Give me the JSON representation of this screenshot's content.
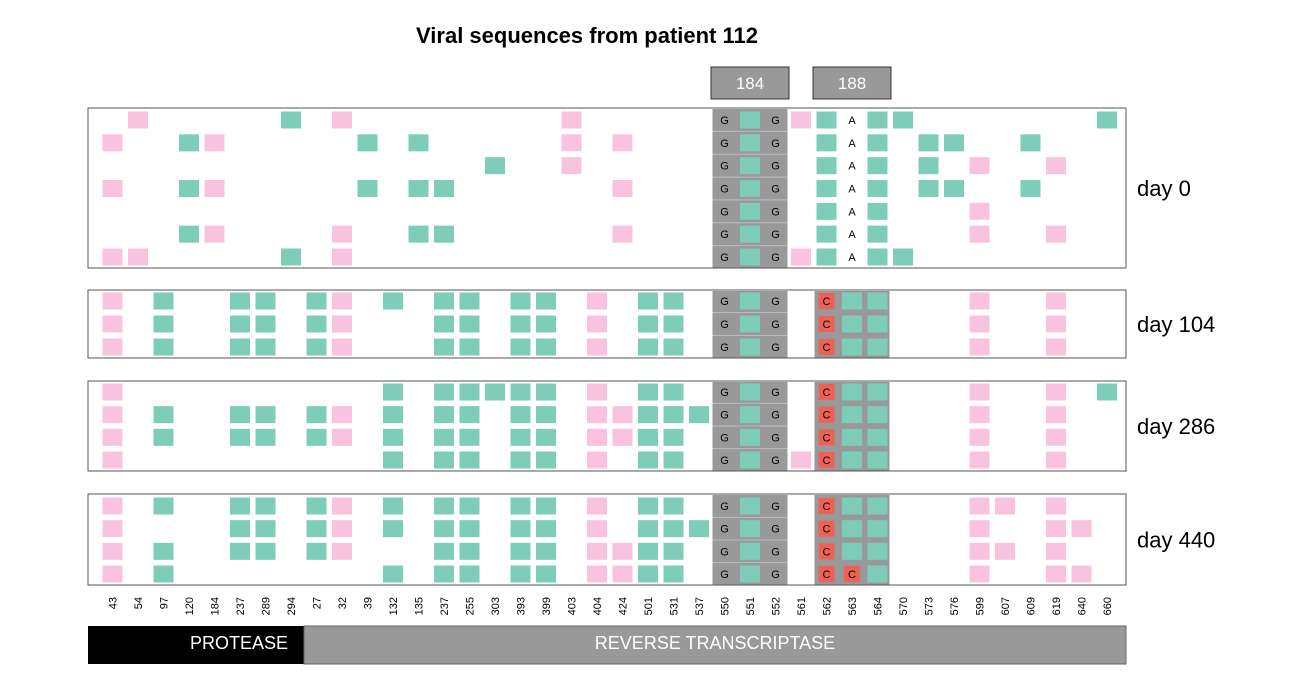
{
  "chart_data": {
    "type": "heatmap",
    "title": "Viral sequences from patient 112",
    "positions": [
      "43",
      "54",
      "97",
      "120",
      "184",
      "237",
      "289",
      "294",
      "27",
      "32",
      "39",
      "132",
      "135",
      "237",
      "255",
      "303",
      "393",
      "399",
      "403",
      "404",
      "424",
      "501",
      "531",
      "537",
      "550",
      "551",
      "552",
      "561",
      "562",
      "563",
      "564",
      "570",
      "573",
      "576",
      "599",
      "607",
      "609",
      "619",
      "640",
      "660"
    ],
    "highlights": [
      "184",
      "188"
    ],
    "regions": [
      {
        "label": "PROTEASE",
        "start": 0,
        "end": 7
      },
      {
        "label": "REVERSE TRANSCRIPTASE",
        "start": 8,
        "end": 39
      }
    ],
    "legend": {
      "P": "pink cell",
      "T": "teal cell"
    },
    "colors": {
      "pink": "#f9c3df",
      "teal": "#7dcdb9",
      "gray": "#999999",
      "red": "#ee6157",
      "orange": "#f89c51",
      "frame": "#555555"
    },
    "groups": [
      {
        "label": "day 0",
        "rows": [
          [
            ".",
            "P",
            ".",
            ".",
            ".",
            ".",
            ".",
            "T",
            ".",
            "P",
            ".",
            ".",
            ".",
            ".",
            ".",
            ".",
            ".",
            ".",
            "P",
            ".",
            ".",
            ".",
            ".",
            ".",
            "G",
            "T",
            "G",
            "P",
            "T",
            "A",
            "T",
            "T",
            ".",
            ".",
            ".",
            ".",
            ".",
            ".",
            ".",
            "T"
          ],
          [
            "P",
            ".",
            ".",
            "T",
            "P",
            ".",
            ".",
            ".",
            ".",
            ".",
            "T",
            ".",
            "T",
            ".",
            ".",
            ".",
            ".",
            ".",
            "P",
            ".",
            "P",
            ".",
            ".",
            ".",
            "G",
            "T",
            "G",
            ".",
            "T",
            "A",
            "T",
            ".",
            "T",
            "T",
            ".",
            ".",
            "T",
            ".",
            ".",
            "."
          ],
          [
            ".",
            ".",
            ".",
            ".",
            ".",
            ".",
            ".",
            ".",
            ".",
            ".",
            ".",
            ".",
            ".",
            ".",
            ".",
            "T",
            ".",
            ".",
            "P",
            ".",
            ".",
            ".",
            ".",
            ".",
            "G",
            "T",
            "G",
            ".",
            "T",
            "A",
            "T",
            ".",
            "T",
            ".",
            "P",
            ".",
            ".",
            "P",
            ".",
            "."
          ],
          [
            "P",
            ".",
            ".",
            "T",
            "P",
            ".",
            ".",
            ".",
            ".",
            ".",
            "T",
            ".",
            "T",
            "T",
            ".",
            ".",
            ".",
            ".",
            ".",
            ".",
            "P",
            ".",
            ".",
            ".",
            "G",
            "T",
            "G",
            ".",
            "T",
            "A",
            "T",
            ".",
            "T",
            "T",
            ".",
            ".",
            "T",
            ".",
            ".",
            "."
          ],
          [
            ".",
            ".",
            ".",
            ".",
            ".",
            ".",
            ".",
            ".",
            ".",
            ".",
            ".",
            ".",
            ".",
            ".",
            ".",
            ".",
            ".",
            ".",
            ".",
            ".",
            ".",
            ".",
            ".",
            ".",
            "G",
            "T",
            "G",
            ".",
            "T",
            "A",
            "T",
            ".",
            ".",
            ".",
            "P",
            ".",
            ".",
            ".",
            ".",
            "."
          ],
          [
            ".",
            ".",
            ".",
            "T",
            "P",
            ".",
            ".",
            ".",
            ".",
            "P",
            ".",
            ".",
            "T",
            "T",
            ".",
            ".",
            ".",
            ".",
            ".",
            ".",
            "P",
            ".",
            ".",
            ".",
            "G",
            "T",
            "G",
            ".",
            "T",
            "A",
            "T",
            ".",
            ".",
            ".",
            "P",
            ".",
            ".",
            "P",
            ".",
            "."
          ],
          [
            "P",
            "P",
            ".",
            ".",
            ".",
            ".",
            ".",
            "T",
            ".",
            "P",
            ".",
            ".",
            ".",
            ".",
            ".",
            ".",
            ".",
            ".",
            ".",
            ".",
            ".",
            ".",
            ".",
            ".",
            "G",
            "T",
            "G",
            "P",
            "T",
            "A",
            "T",
            "T",
            ".",
            ".",
            ".",
            ".",
            ".",
            ".",
            ".",
            "."
          ]
        ]
      },
      {
        "label": "day 104",
        "rows": [
          [
            "P",
            ".",
            "T",
            ".",
            ".",
            "T",
            "T",
            ".",
            "T",
            "P",
            ".",
            "T",
            ".",
            "T",
            "T",
            ".",
            "T",
            "T",
            ".",
            "P",
            ".",
            "T",
            "T",
            ".",
            "G",
            "T",
            "G",
            ".",
            "C",
            "T",
            "T",
            ".",
            ".",
            ".",
            "P",
            ".",
            ".",
            "P",
            ".",
            "."
          ],
          [
            "P",
            ".",
            "T",
            ".",
            ".",
            "T",
            "T",
            ".",
            "T",
            "P",
            ".",
            ".",
            ".",
            "T",
            "T",
            ".",
            "T",
            "T",
            ".",
            "P",
            ".",
            "T",
            "T",
            ".",
            "G",
            "T",
            "G",
            ".",
            "C",
            "T",
            "T",
            ".",
            ".",
            ".",
            "P",
            ".",
            ".",
            "P",
            ".",
            "."
          ],
          [
            "P",
            ".",
            "T",
            ".",
            ".",
            "T",
            "T",
            ".",
            "T",
            "P",
            ".",
            ".",
            ".",
            "T",
            "T",
            ".",
            "T",
            "T",
            ".",
            "P",
            ".",
            "T",
            "T",
            ".",
            "G",
            "T",
            "G",
            ".",
            "C",
            "T",
            "T",
            ".",
            ".",
            ".",
            "P",
            ".",
            ".",
            "P",
            ".",
            "."
          ]
        ]
      },
      {
        "label": "day 286",
        "rows": [
          [
            "P",
            ".",
            ".",
            ".",
            ".",
            ".",
            ".",
            ".",
            ".",
            ".",
            ".",
            "T",
            ".",
            "T",
            "T",
            "T",
            "T",
            "T",
            ".",
            "P",
            ".",
            "T",
            "T",
            ".",
            "G",
            "T",
            "G",
            ".",
            "C",
            "T",
            "T",
            ".",
            ".",
            ".",
            "P",
            ".",
            ".",
            "P",
            ".",
            "T"
          ],
          [
            "P",
            ".",
            "T",
            ".",
            ".",
            "T",
            "T",
            ".",
            "T",
            "P",
            ".",
            "T",
            ".",
            "T",
            "T",
            ".",
            "T",
            "T",
            ".",
            "P",
            "P",
            "T",
            "T",
            "T",
            "G",
            "T",
            "G",
            ".",
            "C",
            "T",
            "T",
            ".",
            ".",
            ".",
            "P",
            ".",
            ".",
            "P",
            ".",
            "."
          ],
          [
            "P",
            ".",
            "T",
            ".",
            ".",
            "T",
            "T",
            ".",
            "T",
            "P",
            ".",
            "T",
            ".",
            "T",
            "T",
            ".",
            "T",
            "T",
            ".",
            "P",
            "P",
            "T",
            "T",
            ".",
            "G",
            "T",
            "G",
            ".",
            "C",
            "T",
            "T",
            ".",
            ".",
            ".",
            "P",
            ".",
            ".",
            "P",
            ".",
            "."
          ],
          [
            "P",
            ".",
            ".",
            ".",
            ".",
            ".",
            ".",
            ".",
            ".",
            ".",
            ".",
            "T",
            ".",
            "T",
            "T",
            ".",
            "T",
            "T",
            ".",
            "P",
            ".",
            "T",
            "T",
            ".",
            "G",
            "T",
            "G",
            "P",
            "C",
            "T",
            "T",
            ".",
            ".",
            ".",
            "P",
            ".",
            ".",
            "P",
            ".",
            "."
          ]
        ]
      },
      {
        "label": "day 440",
        "rows": [
          [
            "P",
            ".",
            "T",
            ".",
            ".",
            "T",
            "T",
            ".",
            "T",
            "P",
            ".",
            "T",
            ".",
            "T",
            "T",
            ".",
            "T",
            "T",
            ".",
            "P",
            ".",
            "T",
            "T",
            ".",
            "G",
            "T",
            "G",
            ".",
            "C",
            "T",
            "T",
            ".",
            ".",
            ".",
            "P",
            "P",
            ".",
            "P",
            ".",
            "."
          ],
          [
            "P",
            ".",
            ".",
            ".",
            ".",
            "T",
            "T",
            ".",
            "T",
            "P",
            ".",
            "T",
            ".",
            "T",
            "T",
            ".",
            "T",
            "T",
            ".",
            "P",
            ".",
            "T",
            "T",
            "T",
            "G",
            "T",
            "G",
            ".",
            "C",
            "T",
            "T",
            ".",
            ".",
            ".",
            "P",
            ".",
            ".",
            "P",
            "P",
            "."
          ],
          [
            "P",
            ".",
            "T",
            ".",
            ".",
            "T",
            "T",
            ".",
            "T",
            "P",
            ".",
            ".",
            ".",
            "T",
            "T",
            ".",
            "T",
            "T",
            ".",
            "P",
            "P",
            "T",
            "T",
            ".",
            "G",
            "T",
            "G",
            ".",
            "C",
            "T",
            "T",
            ".",
            ".",
            ".",
            "P",
            "P",
            ".",
            "P",
            ".",
            "."
          ],
          [
            "P",
            ".",
            "T",
            ".",
            ".",
            ".",
            ".",
            ".",
            ".",
            ".",
            ".",
            "T",
            ".",
            "T",
            "T",
            ".",
            "T",
            "T",
            ".",
            "P",
            "P",
            "T",
            "T",
            ".",
            "G",
            "T",
            "G",
            ".",
            "C",
            "C",
            "T",
            ".",
            ".",
            ".",
            "P",
            ".",
            ".",
            "P",
            "P",
            "."
          ]
        ]
      }
    ]
  }
}
